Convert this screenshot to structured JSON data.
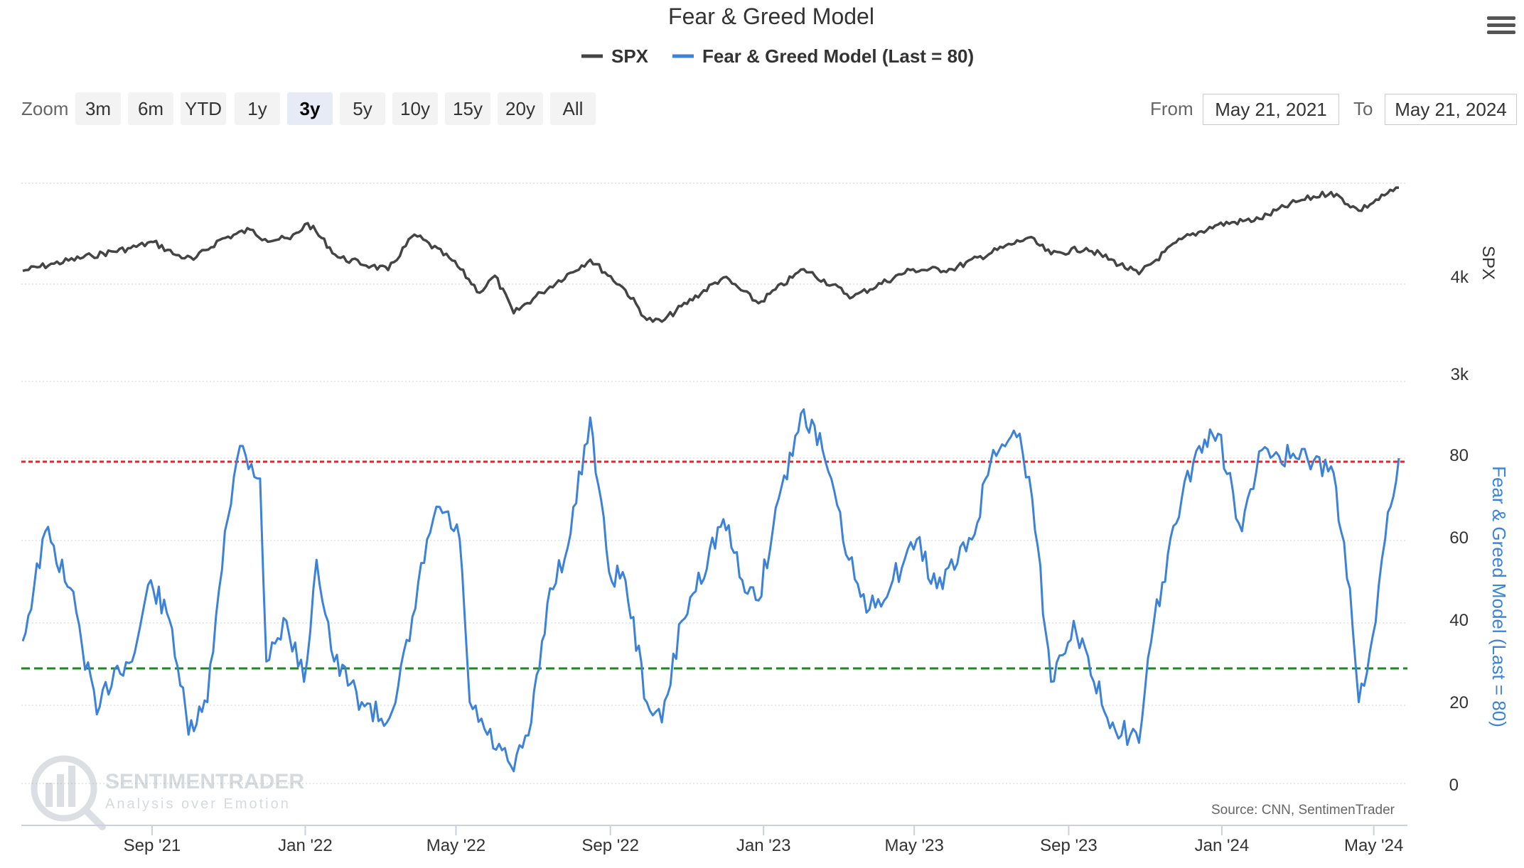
{
  "title": "Fear & Greed Model",
  "legend": [
    {
      "label": "SPX",
      "color": "#444444"
    },
    {
      "label": "Fear & Greed Model (Last = 80)",
      "color": "#3b82d8"
    }
  ],
  "zoom": {
    "label": "Zoom",
    "buttons": [
      "3m",
      "6m",
      "YTD",
      "1y",
      "3y",
      "5y",
      "10y",
      "15y",
      "20y",
      "All"
    ],
    "active": "3y"
  },
  "range": {
    "from_label": "From",
    "from_value": "May 21, 2021",
    "to_label": "To",
    "to_value": "May 21, 2024"
  },
  "watermark": {
    "name": "SENTIMENTRADER",
    "tagline": "Analysis over Emotion"
  },
  "source": "Source: CNN, SentimenTrader",
  "icons": {
    "menu": "hamburger-menu-icon",
    "logo": "sentimentrader-logo-icon"
  },
  "chart_data": {
    "type": "line",
    "title": "Fear & Greed Model",
    "x_range": [
      "2021-05-21",
      "2024-05-21"
    ],
    "x_ticks": [
      {
        "label": "Sep '21",
        "date": "2021-09-01"
      },
      {
        "label": "Jan '22",
        "date": "2022-01-01"
      },
      {
        "label": "May '22",
        "date": "2022-05-01"
      },
      {
        "label": "Sep '22",
        "date": "2022-09-01"
      },
      {
        "label": "Jan '23",
        "date": "2023-01-01"
      },
      {
        "label": "May '23",
        "date": "2023-05-01"
      },
      {
        "label": "Sep '23",
        "date": "2023-09-01"
      },
      {
        "label": "Jan '24",
        "date": "2024-01-01"
      },
      {
        "label": "May '24",
        "date": "2024-05-01"
      }
    ],
    "axes": {
      "spx": {
        "label": "SPX",
        "scale": "log",
        "ticks": [
          "3k",
          "4k"
        ],
        "tick_values": [
          3000,
          4000
        ],
        "range": [
          3000,
          5400
        ]
      },
      "fg": {
        "label": "Fear & Greed Model (Last = 80)",
        "ticks": [
          0,
          20,
          40,
          60,
          80
        ],
        "range": [
          0,
          90
        ]
      }
    },
    "reference_lines": [
      {
        "value": 79,
        "color": "#e3262b",
        "style": "dashed"
      },
      {
        "value": 28,
        "color": "#1a8a1a",
        "style": "dashed"
      }
    ],
    "series": [
      {
        "name": "SPX",
        "color": "#444444",
        "points": [
          [
            "2021-05-21",
            4160
          ],
          [
            "2021-06-15",
            4250
          ],
          [
            "2021-07-15",
            4350
          ],
          [
            "2021-08-15",
            4450
          ],
          [
            "2021-09-02",
            4530
          ],
          [
            "2021-09-20",
            4360
          ],
          [
            "2021-10-04",
            4300
          ],
          [
            "2021-10-25",
            4560
          ],
          [
            "2021-11-18",
            4700
          ],
          [
            "2021-11-30",
            4570
          ],
          [
            "2021-12-20",
            4570
          ],
          [
            "2022-01-03",
            4790
          ],
          [
            "2022-01-27",
            4330
          ],
          [
            "2022-02-23",
            4220
          ],
          [
            "2022-03-08",
            4170
          ],
          [
            "2022-03-29",
            4630
          ],
          [
            "2022-04-28",
            4290
          ],
          [
            "2022-05-20",
            3900
          ],
          [
            "2022-06-01",
            4100
          ],
          [
            "2022-06-16",
            3670
          ],
          [
            "2022-07-08",
            3900
          ],
          [
            "2022-08-16",
            4300
          ],
          [
            "2022-09-13",
            3930
          ],
          [
            "2022-09-30",
            3600
          ],
          [
            "2022-10-12",
            3580
          ],
          [
            "2022-11-30",
            4080
          ],
          [
            "2022-12-28",
            3780
          ],
          [
            "2023-02-02",
            4180
          ],
          [
            "2023-03-13",
            3850
          ],
          [
            "2023-04-28",
            4170
          ],
          [
            "2023-05-31",
            4180
          ],
          [
            "2023-07-31",
            4590
          ],
          [
            "2023-08-18",
            4370
          ],
          [
            "2023-09-15",
            4450
          ],
          [
            "2023-10-27",
            4120
          ],
          [
            "2023-11-30",
            4570
          ],
          [
            "2023-12-29",
            4770
          ],
          [
            "2024-01-31",
            4850
          ],
          [
            "2024-02-29",
            5100
          ],
          [
            "2024-03-28",
            5250
          ],
          [
            "2024-04-19",
            4970
          ],
          [
            "2024-05-21",
            5320
          ]
        ]
      },
      {
        "name": "Fear & Greed Model (Last = 80)",
        "color": "#3b82d8",
        "points": [
          [
            "2021-05-21",
            35
          ],
          [
            "2021-06-08",
            62
          ],
          [
            "2021-06-28",
            48
          ],
          [
            "2021-07-19",
            17
          ],
          [
            "2021-08-02",
            28
          ],
          [
            "2021-08-16",
            30
          ],
          [
            "2021-08-31",
            50
          ],
          [
            "2021-09-17",
            38
          ],
          [
            "2021-09-30",
            12
          ],
          [
            "2021-10-15",
            20
          ],
          [
            "2021-10-29",
            62
          ],
          [
            "2021-11-10",
            83
          ],
          [
            "2021-11-26",
            75
          ],
          [
            "2021-12-01",
            30
          ],
          [
            "2021-12-17",
            40
          ],
          [
            "2021-12-31",
            25
          ],
          [
            "2022-01-10",
            55
          ],
          [
            "2022-01-24",
            30
          ],
          [
            "2022-02-15",
            20
          ],
          [
            "2022-03-07",
            15
          ],
          [
            "2022-03-25",
            35
          ],
          [
            "2022-04-08",
            60
          ],
          [
            "2022-04-18",
            68
          ],
          [
            "2022-05-04",
            60
          ],
          [
            "2022-05-12",
            20
          ],
          [
            "2022-05-26",
            12
          ],
          [
            "2022-06-16",
            3
          ],
          [
            "2022-06-30",
            15
          ],
          [
            "2022-07-15",
            48
          ],
          [
            "2022-07-29",
            58
          ],
          [
            "2022-08-16",
            90
          ],
          [
            "2022-08-31",
            52
          ],
          [
            "2022-09-13",
            50
          ],
          [
            "2022-09-30",
            20
          ],
          [
            "2022-10-12",
            15
          ],
          [
            "2022-10-28",
            40
          ],
          [
            "2022-11-30",
            65
          ],
          [
            "2022-12-15",
            50
          ],
          [
            "2022-12-28",
            45
          ],
          [
            "2023-01-13",
            70
          ],
          [
            "2023-02-02",
            92
          ],
          [
            "2023-02-17",
            82
          ],
          [
            "2023-03-10",
            55
          ],
          [
            "2023-03-24",
            42
          ],
          [
            "2023-04-14",
            50
          ],
          [
            "2023-05-03",
            60
          ],
          [
            "2023-05-19",
            48
          ],
          [
            "2023-06-16",
            60
          ],
          [
            "2023-07-03",
            82
          ],
          [
            "2023-07-24",
            86
          ],
          [
            "2023-08-03",
            70
          ],
          [
            "2023-08-18",
            25
          ],
          [
            "2023-09-05",
            40
          ],
          [
            "2023-09-21",
            25
          ],
          [
            "2023-10-06",
            15
          ],
          [
            "2023-10-27",
            10
          ],
          [
            "2023-11-08",
            40
          ],
          [
            "2023-11-30",
            70
          ],
          [
            "2023-12-14",
            83
          ],
          [
            "2023-12-29",
            86
          ],
          [
            "2024-01-17",
            62
          ],
          [
            "2024-02-02",
            82
          ],
          [
            "2024-02-29",
            80
          ],
          [
            "2024-03-28",
            78
          ],
          [
            "2024-04-05",
            62
          ],
          [
            "2024-04-12",
            48
          ],
          [
            "2024-04-19",
            20
          ],
          [
            "2024-04-30",
            36
          ],
          [
            "2024-05-10",
            60
          ],
          [
            "2024-05-21",
            80
          ]
        ]
      }
    ]
  }
}
